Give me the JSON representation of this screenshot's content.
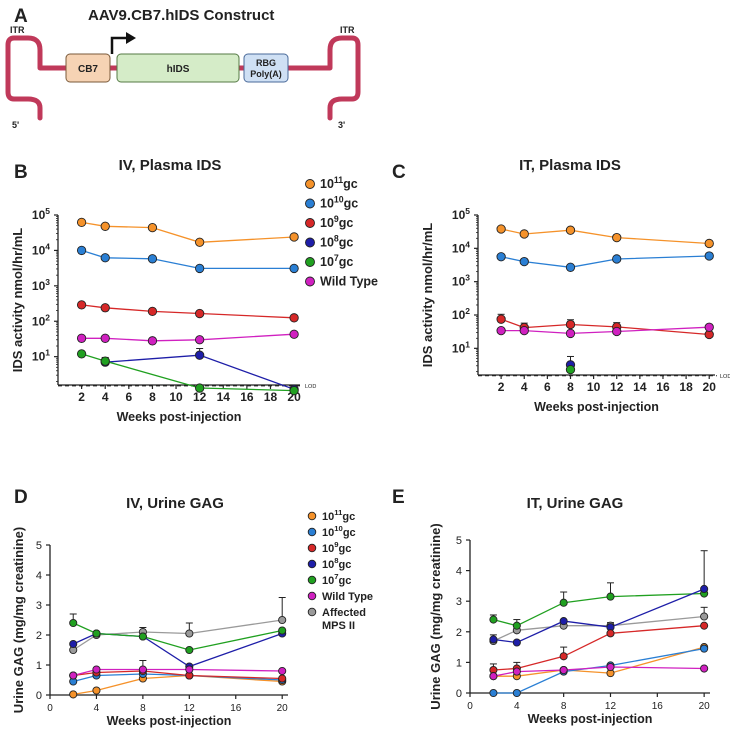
{
  "figure": {
    "panel_a": {
      "letter": "A",
      "title": "AAV9.CB7.hIDS Construct",
      "itr_left": "ITR",
      "itr_right": "ITR",
      "five_prime": "5'",
      "three_prime": "3'",
      "promoter": "CB7",
      "gene": "hIDS",
      "polya_line1": "RBG",
      "polya_line2": "Poly(A)",
      "colors": {
        "itr": "#c0395a",
        "promoter": "#f6d3b4",
        "gene": "#d5ecc8",
        "polya": "#cfe0f4"
      }
    },
    "lod_label": "LOD",
    "colors": {
      "g11": "#f5922a",
      "g10": "#2a7fd4",
      "g9": "#d62828",
      "g8": "#1e1ea8",
      "g7": "#20a020",
      "wt": "#d020c0",
      "mps": "#9a9a9a"
    }
  },
  "chart_data": [
    {
      "id": "B",
      "letter": "B",
      "type": "line",
      "scale": "log",
      "title": "IV, Plasma IDS",
      "xlabel": "Weeks post-injection",
      "ylabel": "IDS activity nmol/hr/mL",
      "x_ticks": [
        2,
        4,
        6,
        8,
        10,
        12,
        14,
        16,
        18,
        20
      ],
      "xlim": [
        0,
        20.5
      ],
      "ylim_exp": [
        0.2,
        5
      ],
      "y_tick_exps": [
        1,
        2,
        3,
        4,
        5
      ],
      "lod": 1.5,
      "legend": [
        {
          "base": "10",
          "exp": "11",
          "unit": "gc",
          "key": "g11"
        },
        {
          "base": "10",
          "exp": "10",
          "unit": "gc",
          "key": "g10"
        },
        {
          "base": "10",
          "exp": "9",
          "unit": "gc",
          "key": "g9"
        },
        {
          "base": "10",
          "exp": "8",
          "unit": "gc",
          "key": "g8"
        },
        {
          "base": "10",
          "exp": "7",
          "unit": "gc",
          "key": "g7"
        },
        {
          "base": "Wild Type",
          "exp": "",
          "unit": "",
          "key": "wt"
        }
      ],
      "series": [
        {
          "name": "10^11gc",
          "key": "g11",
          "x": [
            2,
            4,
            8,
            12,
            20
          ],
          "y": [
            62000,
            48000,
            44000,
            17000,
            24000
          ]
        },
        {
          "name": "10^10gc",
          "key": "g10",
          "x": [
            2,
            4,
            8,
            12,
            20
          ],
          "y": [
            10000,
            6200,
            5800,
            3100,
            3100
          ]
        },
        {
          "name": "10^9gc",
          "key": "g9",
          "x": [
            2,
            4,
            8,
            12,
            20
          ],
          "y": [
            290,
            240,
            190,
            165,
            125
          ]
        },
        {
          "name": "10^8gc",
          "key": "g8",
          "x": [
            4,
            12,
            20
          ],
          "y": [
            7,
            11,
            1.2
          ],
          "err": [
            2.5,
            6,
            0
          ]
        },
        {
          "name": "10^7gc",
          "key": "g7",
          "x": [
            2,
            4,
            12,
            20
          ],
          "y": [
            12,
            7.5,
            1.3,
            1.1
          ]
        },
        {
          "name": "Wild Type",
          "key": "wt",
          "x": [
            2,
            4,
            8,
            12,
            20
          ],
          "y": [
            33,
            33,
            28,
            30,
            43
          ]
        }
      ]
    },
    {
      "id": "C",
      "letter": "C",
      "type": "line",
      "scale": "log",
      "title": "IT, Plasma IDS",
      "xlabel": "Weeks post-injection",
      "ylabel": "IDS activity nmol/hr/mL",
      "x_ticks": [
        2,
        4,
        6,
        8,
        10,
        12,
        14,
        16,
        18,
        20
      ],
      "xlim": [
        0,
        20.5
      ],
      "ylim_exp": [
        0.2,
        5
      ],
      "y_tick_exps": [
        1,
        2,
        3,
        4,
        5
      ],
      "lod": 1.5,
      "series": [
        {
          "name": "10^11gc",
          "key": "g11",
          "x": [
            2,
            4,
            8,
            12,
            20
          ],
          "y": [
            38000,
            27000,
            35000,
            21000,
            14000
          ]
        },
        {
          "name": "10^10gc",
          "key": "g10",
          "x": [
            2,
            4,
            8,
            12,
            20
          ],
          "y": [
            5600,
            4000,
            2700,
            4800,
            5900
          ]
        },
        {
          "name": "10^9gc",
          "key": "g9",
          "x": [
            2,
            4,
            8,
            12,
            20
          ],
          "y": [
            75,
            42,
            52,
            44,
            26
          ],
          "err": [
            30,
            15,
            20,
            15,
            0
          ]
        },
        {
          "name": "10^8gc",
          "key": "g8",
          "x": [
            8
          ],
          "y": [
            3.2
          ],
          "err": [
            2.5
          ]
        },
        {
          "name": "10^7gc",
          "key": "g7",
          "x": [
            8
          ],
          "y": [
            2.3
          ]
        },
        {
          "name": "Wild Type",
          "key": "wt",
          "x": [
            2,
            4,
            8,
            12,
            20
          ],
          "y": [
            34,
            34,
            28,
            32,
            43
          ]
        }
      ]
    },
    {
      "id": "D",
      "letter": "D",
      "type": "line",
      "scale": "linear",
      "title": "IV, Urine GAG",
      "xlabel": "Weeks post-injection",
      "ylabel": "Urine GAG (mg/mg creatinine)",
      "x_ticks": [
        0,
        4,
        8,
        12,
        16,
        20
      ],
      "xlim": [
        0,
        20.5
      ],
      "ylim": [
        0,
        5
      ],
      "y_ticks": [
        0,
        1,
        2,
        3,
        4,
        5
      ],
      "legend": [
        {
          "base": "10",
          "exp": "11",
          "unit": "gc",
          "key": "g11"
        },
        {
          "base": "10",
          "exp": "10",
          "unit": "gc",
          "key": "g10"
        },
        {
          "base": "10",
          "exp": "9",
          "unit": "gc",
          "key": "g9"
        },
        {
          "base": "10",
          "exp": "8",
          "unit": "gc",
          "key": "g8"
        },
        {
          "base": "10",
          "exp": "7",
          "unit": "gc",
          "key": "g7"
        },
        {
          "base": "Wild Type",
          "exp": "",
          "unit": "",
          "key": "wt"
        },
        {
          "base": "Affected",
          "line2": "MPS II",
          "exp": "",
          "unit": "",
          "key": "mps"
        }
      ],
      "series": [
        {
          "name": "Affected MPS II",
          "key": "mps",
          "x": [
            2,
            4,
            8,
            12,
            20
          ],
          "y": [
            1.5,
            2.0,
            2.1,
            2.05,
            2.5
          ],
          "err": [
            0.2,
            0.1,
            0.15,
            0.35,
            0.75
          ]
        },
        {
          "name": "10^11gc",
          "key": "g11",
          "x": [
            2,
            4,
            8,
            12,
            20
          ],
          "y": [
            0.02,
            0.15,
            0.55,
            0.65,
            0.45
          ]
        },
        {
          "name": "10^10gc",
          "key": "g10",
          "x": [
            2,
            4,
            8,
            12,
            20
          ],
          "y": [
            0.45,
            0.65,
            0.7,
            0.65,
            0.5
          ]
        },
        {
          "name": "10^9gc",
          "key": "g9",
          "x": [
            2,
            4,
            8,
            12,
            20
          ],
          "y": [
            0.65,
            0.75,
            0.8,
            0.65,
            0.55
          ],
          "err": [
            0,
            0,
            0.35,
            0,
            0
          ]
        },
        {
          "name": "10^8gc",
          "key": "g8",
          "x": [
            2,
            4,
            8,
            12,
            20
          ],
          "y": [
            1.7,
            2.05,
            1.95,
            0.95,
            2.05
          ]
        },
        {
          "name": "10^7gc",
          "key": "g7",
          "x": [
            2,
            4,
            8,
            12,
            20
          ],
          "y": [
            2.4,
            2.05,
            1.95,
            1.5,
            2.15
          ],
          "err": [
            0.3,
            0,
            0,
            0,
            0
          ]
        },
        {
          "name": "Wild Type",
          "key": "wt",
          "x": [
            2,
            4,
            8,
            12,
            20
          ],
          "y": [
            0.65,
            0.85,
            0.85,
            0.85,
            0.8
          ]
        }
      ]
    },
    {
      "id": "E",
      "letter": "E",
      "type": "line",
      "scale": "linear",
      "title": "IT, Urine GAG",
      "xlabel": "Weeks post-injection",
      "ylabel": "Urine GAG (mg/mg creatinine)",
      "x_ticks": [
        0,
        4,
        8,
        12,
        16,
        20
      ],
      "xlim": [
        0,
        20.5
      ],
      "ylim": [
        0,
        5
      ],
      "y_ticks": [
        0,
        1,
        2,
        3,
        4,
        5
      ],
      "series": [
        {
          "name": "Affected MPS II",
          "key": "mps",
          "x": [
            2,
            4,
            8,
            12,
            20
          ],
          "y": [
            1.7,
            2.05,
            2.2,
            2.2,
            2.5
          ],
          "err": [
            0.2,
            0.15,
            0.1,
            0.1,
            0.3
          ]
        },
        {
          "name": "10^7gc",
          "key": "g7",
          "x": [
            2,
            4,
            8,
            12,
            20
          ],
          "y": [
            2.4,
            2.2,
            2.95,
            3.15,
            3.25
          ],
          "err": [
            0.15,
            0.2,
            0.35,
            0.45,
            0
          ]
        },
        {
          "name": "10^8gc",
          "key": "g8",
          "x": [
            2,
            4,
            8,
            12,
            20
          ],
          "y": [
            1.75,
            1.65,
            2.35,
            2.15,
            3.4
          ],
          "err": [
            0,
            0,
            0,
            0,
            1.25
          ]
        },
        {
          "name": "10^9gc",
          "key": "g9",
          "x": [
            2,
            4,
            8,
            12,
            20
          ],
          "y": [
            0.75,
            0.8,
            1.2,
            1.95,
            2.2
          ],
          "err": [
            0.2,
            0.2,
            0.3,
            0,
            0
          ]
        },
        {
          "name": "10^11gc",
          "key": "g11",
          "x": [
            2,
            4,
            8,
            12,
            20
          ],
          "y": [
            0.55,
            0.55,
            0.75,
            0.65,
            1.5
          ]
        },
        {
          "name": "10^10gc",
          "key": "g10",
          "x": [
            2,
            4,
            8,
            12,
            20
          ],
          "y": [
            0.0,
            0.0,
            0.7,
            0.9,
            1.45
          ]
        },
        {
          "name": "Wild Type",
          "key": "wt",
          "x": [
            2,
            4,
            8,
            12,
            20
          ],
          "y": [
            0.55,
            0.7,
            0.75,
            0.85,
            0.8
          ]
        }
      ]
    }
  ]
}
